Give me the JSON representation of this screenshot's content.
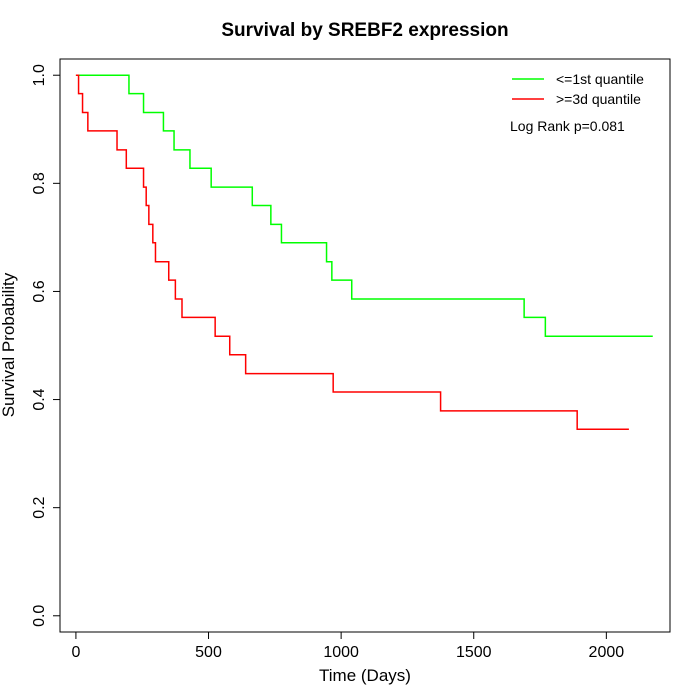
{
  "chart_data": {
    "type": "line",
    "step": true,
    "title": "Survival by SREBF2 expression",
    "xlabel": "Time (Days)",
    "ylabel": "Survival Probability",
    "xlim": [
      -60,
      2240
    ],
    "ylim": [
      -0.03,
      1.03
    ],
    "xticks": [
      0,
      500,
      1000,
      1500,
      2000
    ],
    "yticks": [
      0.0,
      0.2,
      0.4,
      0.6,
      0.8,
      1.0
    ],
    "xtick_labels": [
      "0",
      "500",
      "1000",
      "1500",
      "2000"
    ],
    "ytick_labels": [
      "0.0",
      "0.2",
      "0.4",
      "0.6",
      "0.8",
      "1.0"
    ],
    "grid": false,
    "legend_position": "top-right",
    "annotation": "Log Rank p=0.081",
    "series": [
      {
        "name": "<=1st quantile",
        "color": "#00ff00",
        "x": [
          0,
          200,
          255,
          330,
          370,
          430,
          510,
          665,
          735,
          775,
          945,
          965,
          1040,
          1690,
          1770,
          2175
        ],
        "y": [
          1.0,
          0.966,
          0.931,
          0.897,
          0.862,
          0.828,
          0.793,
          0.759,
          0.724,
          0.69,
          0.655,
          0.621,
          0.586,
          0.552,
          0.517,
          0.517
        ]
      },
      {
        "name": ">=3d quantile",
        "color": "#ff0000",
        "x": [
          0,
          10,
          25,
          45,
          155,
          190,
          255,
          265,
          275,
          290,
          300,
          350,
          375,
          400,
          525,
          580,
          640,
          970,
          1375,
          1890,
          2085
        ],
        "y": [
          1.0,
          0.966,
          0.931,
          0.897,
          0.862,
          0.828,
          0.793,
          0.759,
          0.724,
          0.69,
          0.655,
          0.621,
          0.586,
          0.552,
          0.517,
          0.483,
          0.448,
          0.414,
          0.379,
          0.345,
          0.345
        ]
      }
    ]
  }
}
